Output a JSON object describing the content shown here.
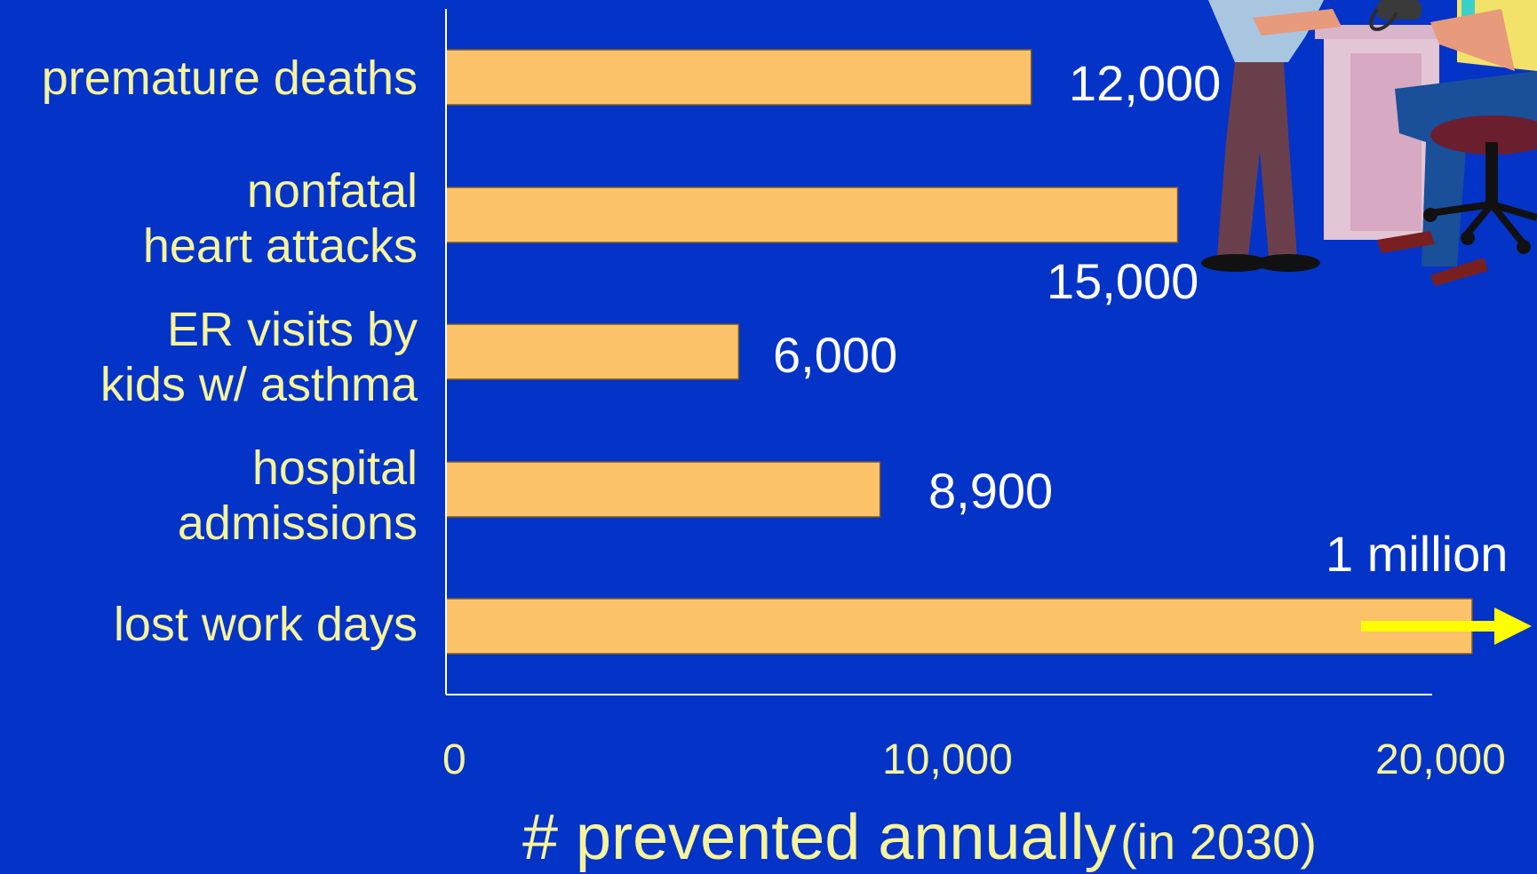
{
  "chart_data": {
    "type": "bar",
    "orientation": "horizontal",
    "categories": [
      "premature deaths",
      "nonfatal\nheart attacks",
      "ER visits by\nkids w/ asthma",
      "hospital \nadmissions",
      "lost work days"
    ],
    "values": [
      12000,
      15000,
      6000,
      8900,
      1000000
    ],
    "value_labels": [
      "12,000",
      "15,000",
      "6,000",
      "8,900",
      "1 million"
    ],
    "xlim": [
      0,
      20000
    ],
    "xticks": [
      0,
      10000,
      20000
    ],
    "xtick_labels": [
      "0",
      "10,000",
      "20,000"
    ],
    "xlabel": "# prevented annually",
    "xlabel_note": "(in 2030)",
    "grid": false,
    "colors": {
      "background": "#0433c8",
      "bar": "#fbc26a",
      "bar_stroke": "#7a5a20",
      "axis": "#ffffff",
      "category_text": "#f6f49a",
      "value_text": "#ffffff",
      "arrow": "#ffff00"
    }
  },
  "illustration": {
    "icon": "doctor-checking-patient-blood-pressure-icon"
  }
}
